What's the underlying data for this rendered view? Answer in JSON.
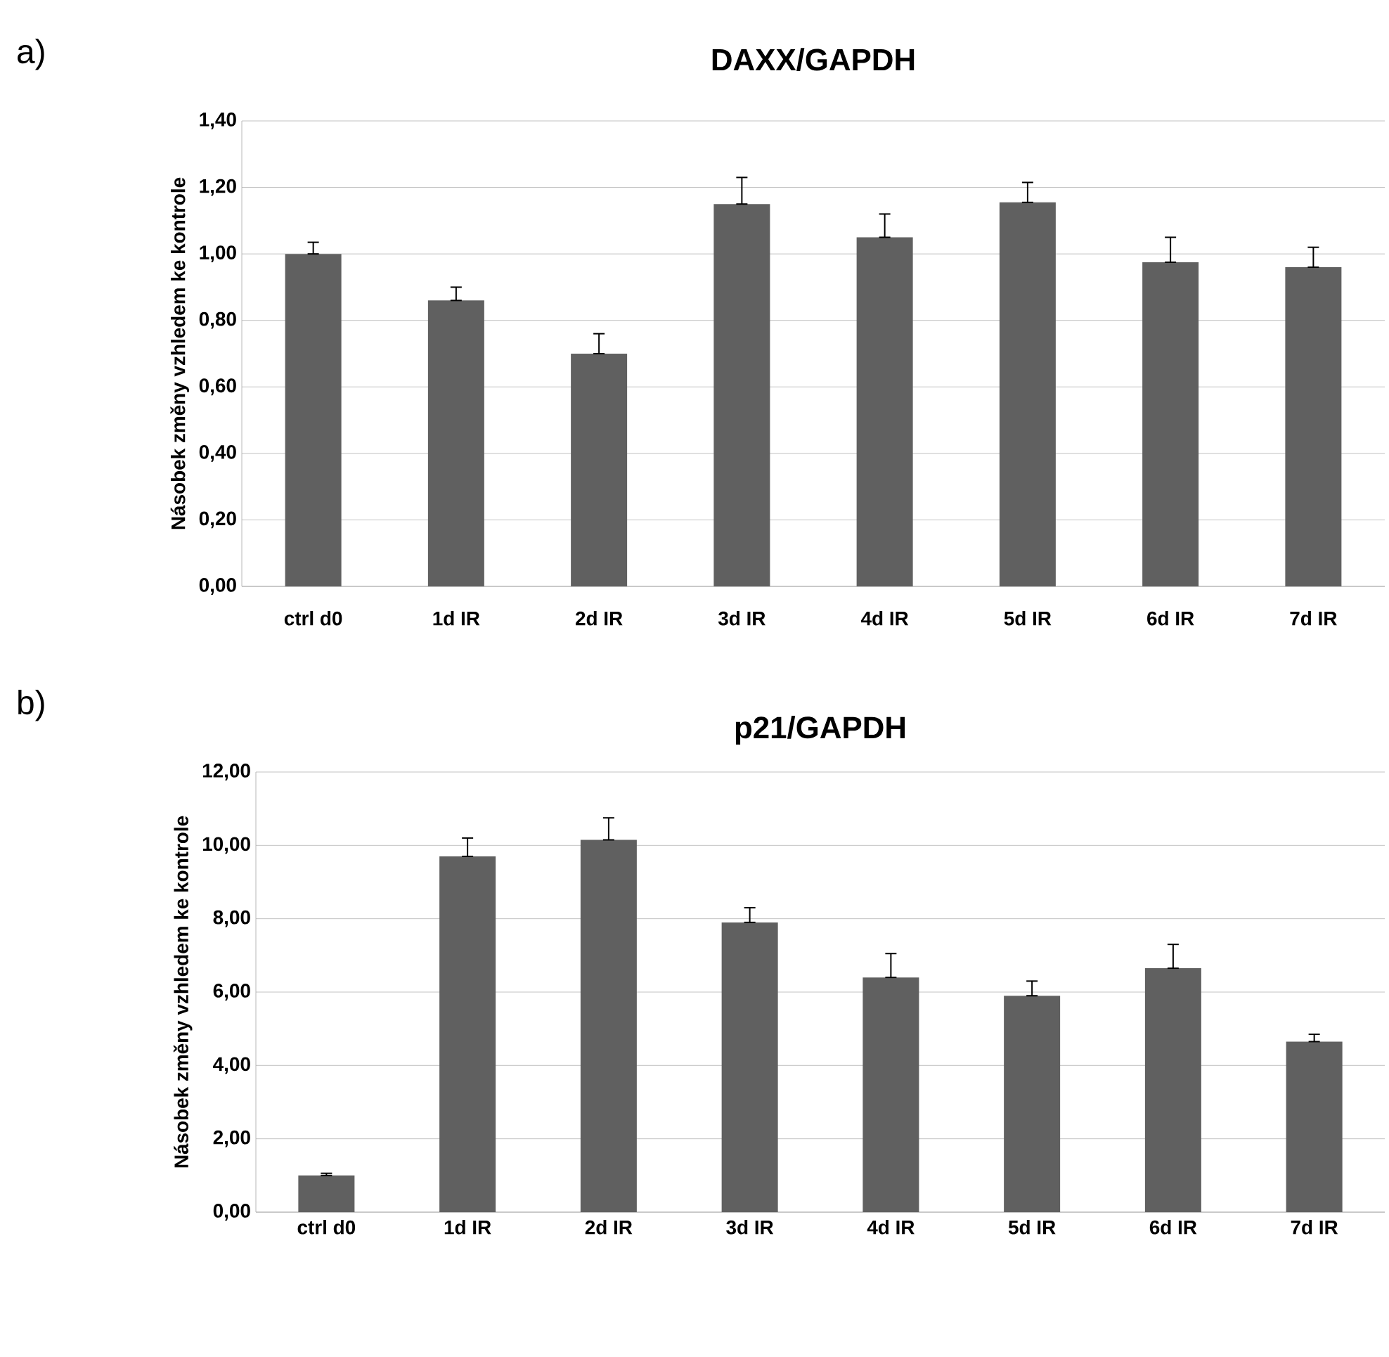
{
  "chart_data": [
    {
      "type": "bar",
      "title": "DAXX/GAPDH",
      "ylabel": "Násobek změny vzhledem ke kontrole",
      "annotations": [
        "a)"
      ],
      "categories": [
        "ctrl d0",
        "1d IR",
        "2d IR",
        "3d IR",
        "4d IR",
        "5d IR",
        "6d IR",
        "7d IR"
      ],
      "values": [
        1.0,
        0.86,
        0.7,
        1.15,
        1.05,
        1.155,
        0.975,
        0.96
      ],
      "errors": [
        [
          1.0,
          1.035
        ],
        [
          0.86,
          0.9
        ],
        [
          0.7,
          0.76
        ],
        [
          1.15,
          1.23
        ],
        [
          1.05,
          1.12
        ],
        [
          1.155,
          1.215
        ],
        [
          0.975,
          1.05
        ],
        [
          0.96,
          1.02
        ]
      ],
      "color": "#606060",
      "grid": "y",
      "ylim": [
        0,
        1.4
      ],
      "yticks": [
        {
          "value": 0,
          "label": "0,00"
        },
        {
          "value": 0.2,
          "label": "0,20"
        },
        {
          "value": 0.4,
          "label": "0,40"
        },
        {
          "value": 0.6,
          "label": "0,60"
        },
        {
          "value": 0.8,
          "label": "0,80"
        },
        {
          "value": 1.0,
          "label": "1,00"
        },
        {
          "value": 1.2,
          "label": "1,20"
        },
        {
          "value": 1.4,
          "label": "1,40"
        }
      ]
    },
    {
      "type": "bar",
      "title": "p21/GAPDH",
      "ylabel": "Násobek změny vzhledem ke kontrole",
      "annotations": [
        "b)"
      ],
      "categories": [
        "ctrl d0",
        "1d IR",
        "2d IR",
        "3d IR",
        "4d IR",
        "5d IR",
        "6d IR",
        "7d IR"
      ],
      "values": [
        1.0,
        9.7,
        10.15,
        7.9,
        6.4,
        5.9,
        6.65,
        4.65
      ],
      "errors": [
        [
          1.0,
          1.06
        ],
        [
          9.7,
          10.2
        ],
        [
          10.15,
          10.75
        ],
        [
          7.9,
          8.3
        ],
        [
          6.4,
          7.05
        ],
        [
          5.9,
          6.3
        ],
        [
          6.65,
          7.3
        ],
        [
          4.65,
          4.85
        ]
      ],
      "color": "#606060",
      "grid": "y",
      "ylim": [
        0,
        12
      ],
      "yticks": [
        {
          "value": 0,
          "label": "0,00"
        },
        {
          "value": 2,
          "label": "2,00"
        },
        {
          "value": 4,
          "label": "4,00"
        },
        {
          "value": 6,
          "label": "6,00"
        },
        {
          "value": 8,
          "label": "8,00"
        },
        {
          "value": 10,
          "label": "10,00"
        },
        {
          "value": 12,
          "label": "12,00"
        }
      ]
    }
  ]
}
